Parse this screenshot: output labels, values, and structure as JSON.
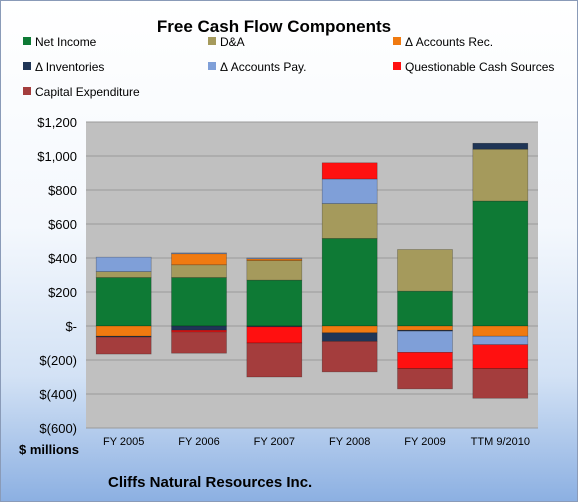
{
  "chart_data": {
    "type": "bar",
    "stacked": true,
    "title": "Free Cash Flow Components",
    "categories": [
      "FY 2005",
      "FY 2006",
      "FY 2007",
      "FY 2008",
      "FY 2009",
      "TTM 9/2010"
    ],
    "series": [
      {
        "name": "Net Income",
        "color": "#0e7a35",
        "values": [
          285,
          285,
          270,
          515,
          205,
          735
        ]
      },
      {
        "name": "D&A",
        "color": "#a59a5c",
        "values": [
          35,
          75,
          115,
          205,
          245,
          305
        ]
      },
      {
        "name": "Δ Accounts Rec.",
        "color": "#f07a10",
        "values": [
          -60,
          65,
          10,
          -40,
          -25,
          -60
        ]
      },
      {
        "name": "Δ Inventories",
        "color": "#1f3556",
        "values": [
          -5,
          -25,
          -5,
          -50,
          -5,
          35
        ]
      },
      {
        "name": "Δ Accounts Pay.",
        "color": "#7f9fd8",
        "values": [
          85,
          5,
          5,
          145,
          -125,
          -50
        ]
      },
      {
        "name": "Questionable Cash Sources",
        "color": "#ff1010",
        "values": [
          0,
          -10,
          -95,
          95,
          -95,
          -140
        ]
      },
      {
        "name": "Capital Expenditure",
        "color": "#a43d3d",
        "values": [
          -100,
          -125,
          -200,
          -180,
          -120,
          -175
        ]
      }
    ],
    "ylim": [
      -600,
      1200
    ],
    "yticks": [
      -600,
      -400,
      -200,
      0,
      200,
      400,
      600,
      800,
      1000,
      1200
    ],
    "ytick_labels": [
      "$(600)",
      "$(400)",
      "$(200)",
      "$-",
      "$200",
      "$400",
      "$600",
      "$800",
      "$1,000",
      "$1,200"
    ],
    "ylabel": "$ millions",
    "source": "Cliffs Natural Resources Inc.",
    "legend_position": "top",
    "plot_background": "#c0c0c0"
  }
}
